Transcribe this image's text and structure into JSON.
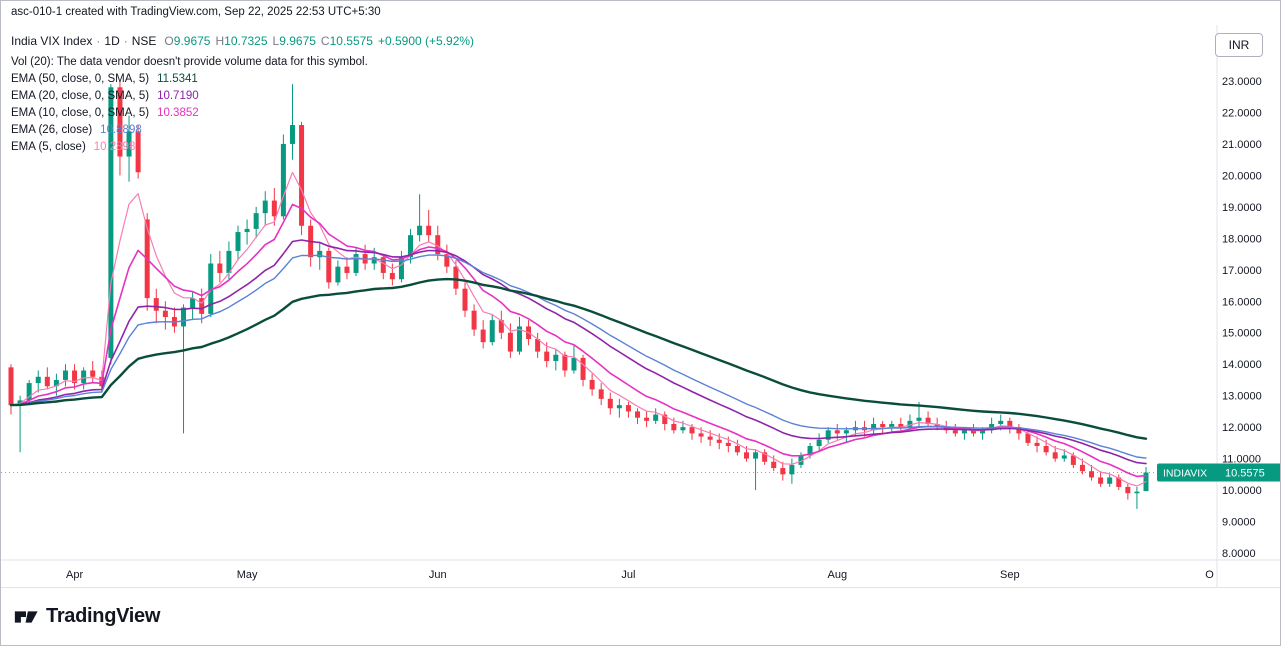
{
  "header": {
    "text": "asc-010-1 created with TradingView.com, Sep 22, 2025 22:53 UTC+5:30"
  },
  "currency_button": {
    "label": "INR"
  },
  "legend": {
    "symbol": "India VIX Index",
    "separator": "·",
    "interval": "1D",
    "exchange": "NSE",
    "ohlc_color": "#089981",
    "ohlc": {
      "o_label": "O",
      "o": "9.9675",
      "h_label": "H",
      "h": "10.7325",
      "l_label": "L",
      "l": "9.9675",
      "c_label": "C",
      "c": "10.5575"
    },
    "change": "+0.5900 (+5.92%)",
    "vol_line": "Vol (20): The data vendor doesn't provide volume data for this symbol.",
    "indicators": [
      {
        "label": "EMA (50, close, 0, SMA, 5)",
        "value": "11.5341",
        "color": "#0b4d3c"
      },
      {
        "label": "EMA (20, close, 0, SMA, 5)",
        "value": "10.7190",
        "color": "#8e24aa"
      },
      {
        "label": "EMA (10, close, 0, SMA, 5)",
        "value": "10.3852",
        "color": "#e632c1"
      },
      {
        "label": "EMA (26, close)",
        "value": "10.8898",
        "color": "#5b82d7"
      },
      {
        "label": "EMA (5, close)",
        "value": "10.2898",
        "color": "#f77db5"
      }
    ]
  },
  "price_axis": {
    "price_tag": {
      "symbol": "INDIAVIX",
      "value": "10.5575",
      "color": "#089981"
    }
  },
  "footer": {
    "brand": "TradingView"
  },
  "chart_data": {
    "type": "candlestick",
    "title": "India VIX Index · 1D · NSE",
    "ylabel": "INR",
    "ylim": [
      7.8,
      23.3
    ],
    "y_ticks": [
      8,
      9,
      10,
      11,
      12,
      13,
      14,
      15,
      16,
      17,
      18,
      19,
      20,
      21,
      22,
      23
    ],
    "y_tick_labels": [
      "8.0000",
      "9.0000",
      "10.0000",
      "11.0000",
      "12.0000",
      "13.0000",
      "14.0000",
      "15.0000",
      "16.0000",
      "17.0000",
      "18.0000",
      "19.0000",
      "20.0000",
      "21.0000",
      "22.0000",
      "23.0000"
    ],
    "current_price": 10.5575,
    "up_color": "#089981",
    "down_color": "#f23645",
    "grid": false,
    "legend_position": "top-left",
    "month_ticks": [
      {
        "label": "Apr",
        "i": 7
      },
      {
        "label": "May",
        "i": 26
      },
      {
        "label": "Jun",
        "i": 47
      },
      {
        "label": "Jul",
        "i": 68
      },
      {
        "label": "Aug",
        "i": 91
      },
      {
        "label": "Sep",
        "i": 110
      },
      {
        "label": "O",
        "i": 132
      }
    ],
    "emas": [
      {
        "period": 5,
        "color": "#f77db5",
        "width": 1.2
      },
      {
        "period": 10,
        "color": "#e632c1",
        "width": 1.6
      },
      {
        "period": 20,
        "color": "#8e24aa",
        "width": 1.6
      },
      {
        "period": 26,
        "color": "#5b82d7",
        "width": 1.4
      },
      {
        "period": 50,
        "color": "#0b4d3c",
        "width": 2.4
      }
    ],
    "candles": [
      [
        13.9,
        14.0,
        12.4,
        12.7
      ],
      [
        12.7,
        13.0,
        11.2,
        12.85
      ],
      [
        12.85,
        13.5,
        12.7,
        13.4
      ],
      [
        13.4,
        13.8,
        13.1,
        13.6
      ],
      [
        13.6,
        13.9,
        13.2,
        13.3
      ],
      [
        13.3,
        13.7,
        13.0,
        13.5
      ],
      [
        13.5,
        14.0,
        13.3,
        13.8
      ],
      [
        13.8,
        14.0,
        13.2,
        13.4
      ],
      [
        13.4,
        13.9,
        13.2,
        13.8
      ],
      [
        13.8,
        14.1,
        13.4,
        13.6
      ],
      [
        13.6,
        13.8,
        13.1,
        13.3
      ],
      [
        14.2,
        22.9,
        14.0,
        22.8
      ],
      [
        22.8,
        23.0,
        20.0,
        20.6
      ],
      [
        20.6,
        21.9,
        19.8,
        21.4
      ],
      [
        21.4,
        21.6,
        19.9,
        20.1
      ],
      [
        18.6,
        18.8,
        15.7,
        16.1
      ],
      [
        16.1,
        16.4,
        15.3,
        15.7
      ],
      [
        15.7,
        16.0,
        15.1,
        15.5
      ],
      [
        15.5,
        15.8,
        15.0,
        15.2
      ],
      [
        15.2,
        15.9,
        11.8,
        15.8
      ],
      [
        15.8,
        16.3,
        15.4,
        16.1
      ],
      [
        16.1,
        16.4,
        15.3,
        15.6
      ],
      [
        15.6,
        17.5,
        15.5,
        17.2
      ],
      [
        17.2,
        17.6,
        16.6,
        16.9
      ],
      [
        16.9,
        17.9,
        16.7,
        17.6
      ],
      [
        17.6,
        18.4,
        17.3,
        18.2
      ],
      [
        18.2,
        18.6,
        17.8,
        18.3
      ],
      [
        18.3,
        19.0,
        18.0,
        18.8
      ],
      [
        18.8,
        19.5,
        18.4,
        19.2
      ],
      [
        19.2,
        19.6,
        18.4,
        18.7
      ],
      [
        18.7,
        21.3,
        18.6,
        21.0
      ],
      [
        21.0,
        22.9,
        20.5,
        21.6
      ],
      [
        21.6,
        21.7,
        18.1,
        18.4
      ],
      [
        18.4,
        18.6,
        17.1,
        17.4
      ],
      [
        17.4,
        17.9,
        17.0,
        17.6
      ],
      [
        17.6,
        17.7,
        16.4,
        16.6
      ],
      [
        16.6,
        17.3,
        16.5,
        17.1
      ],
      [
        17.1,
        17.4,
        16.7,
        16.9
      ],
      [
        16.9,
        17.7,
        16.8,
        17.5
      ],
      [
        17.5,
        17.8,
        17.0,
        17.2
      ],
      [
        17.2,
        17.7,
        17.0,
        17.4
      ],
      [
        17.4,
        17.5,
        16.7,
        16.9
      ],
      [
        16.9,
        17.2,
        16.5,
        16.7
      ],
      [
        16.7,
        17.6,
        16.6,
        17.4
      ],
      [
        17.4,
        18.3,
        17.2,
        18.1
      ],
      [
        18.1,
        19.4,
        17.9,
        18.4
      ],
      [
        18.4,
        18.9,
        17.9,
        18.1
      ],
      [
        18.1,
        18.4,
        17.3,
        17.5
      ],
      [
        17.5,
        17.8,
        16.9,
        17.1
      ],
      [
        17.1,
        17.3,
        16.2,
        16.4
      ],
      [
        16.4,
        16.6,
        15.5,
        15.7
      ],
      [
        15.7,
        15.9,
        14.9,
        15.1
      ],
      [
        15.1,
        15.4,
        14.5,
        14.7
      ],
      [
        14.7,
        15.6,
        14.6,
        15.4
      ],
      [
        15.4,
        15.7,
        14.8,
        15.0
      ],
      [
        15.0,
        15.3,
        14.2,
        14.4
      ],
      [
        14.4,
        15.5,
        14.3,
        15.2
      ],
      [
        15.2,
        15.4,
        14.6,
        14.8
      ],
      [
        14.8,
        15.0,
        14.2,
        14.4
      ],
      [
        14.4,
        14.7,
        13.9,
        14.1
      ],
      [
        14.1,
        14.5,
        13.8,
        14.3
      ],
      [
        14.3,
        14.4,
        13.6,
        13.8
      ],
      [
        13.8,
        14.6,
        13.7,
        14.2
      ],
      [
        14.2,
        14.3,
        13.3,
        13.5
      ],
      [
        13.5,
        13.7,
        13.0,
        13.2
      ],
      [
        13.2,
        13.4,
        12.7,
        12.9
      ],
      [
        12.9,
        13.1,
        12.4,
        12.6
      ],
      [
        12.6,
        12.9,
        12.3,
        12.7
      ],
      [
        12.7,
        12.8,
        12.3,
        12.5
      ],
      [
        12.5,
        12.6,
        12.1,
        12.3
      ],
      [
        12.3,
        12.5,
        12.0,
        12.2
      ],
      [
        12.2,
        12.6,
        12.1,
        12.4
      ],
      [
        12.4,
        12.5,
        11.9,
        12.1
      ],
      [
        12.1,
        12.3,
        11.8,
        11.9
      ],
      [
        11.9,
        12.2,
        11.8,
        12.0
      ],
      [
        12.0,
        12.1,
        11.6,
        11.8
      ],
      [
        11.8,
        12.0,
        11.5,
        11.7
      ],
      [
        11.7,
        11.9,
        11.4,
        11.6
      ],
      [
        11.6,
        11.8,
        11.3,
        11.5
      ],
      [
        11.5,
        11.7,
        11.2,
        11.4
      ],
      [
        11.4,
        11.6,
        11.1,
        11.2
      ],
      [
        11.2,
        11.4,
        10.9,
        11.0
      ],
      [
        11.0,
        11.3,
        10.0,
        11.2
      ],
      [
        11.2,
        11.3,
        10.8,
        10.9
      ],
      [
        10.9,
        11.1,
        10.6,
        10.7
      ],
      [
        10.7,
        10.9,
        10.3,
        10.5
      ],
      [
        10.5,
        11.0,
        10.2,
        10.8
      ],
      [
        10.8,
        11.2,
        10.7,
        11.1
      ],
      [
        11.1,
        11.5,
        11.0,
        11.4
      ],
      [
        11.4,
        11.8,
        11.2,
        11.6
      ],
      [
        11.6,
        12.0,
        11.5,
        11.9
      ],
      [
        11.9,
        12.1,
        11.6,
        11.8
      ],
      [
        11.8,
        12.0,
        11.5,
        11.9
      ],
      [
        11.9,
        12.2,
        11.7,
        12.0
      ],
      [
        12.0,
        12.2,
        11.7,
        11.9
      ],
      [
        11.9,
        12.3,
        11.8,
        12.1
      ],
      [
        12.1,
        12.2,
        11.8,
        12.0
      ],
      [
        12.0,
        12.2,
        11.8,
        12.1
      ],
      [
        12.1,
        12.3,
        11.9,
        12.0
      ],
      [
        12.0,
        12.4,
        11.9,
        12.2
      ],
      [
        12.2,
        12.8,
        12.0,
        12.3
      ],
      [
        12.3,
        12.5,
        12.0,
        12.1
      ],
      [
        12.1,
        12.3,
        11.9,
        12.0
      ],
      [
        12.0,
        12.2,
        11.8,
        11.9
      ],
      [
        11.9,
        12.1,
        11.7,
        11.8
      ],
      [
        11.8,
        12.0,
        11.6,
        11.9
      ],
      [
        11.9,
        12.1,
        11.7,
        11.8
      ],
      [
        11.8,
        12.0,
        11.6,
        11.9
      ],
      [
        11.9,
        12.3,
        11.8,
        12.1
      ],
      [
        12.1,
        12.4,
        11.9,
        12.2
      ],
      [
        12.2,
        12.3,
        11.8,
        12.0
      ],
      [
        12.0,
        12.1,
        11.6,
        11.8
      ],
      [
        11.8,
        11.9,
        11.4,
        11.5
      ],
      [
        11.5,
        11.7,
        11.2,
        11.4
      ],
      [
        11.4,
        11.6,
        11.1,
        11.2
      ],
      [
        11.2,
        11.4,
        10.9,
        11.0
      ],
      [
        11.0,
        11.3,
        10.9,
        11.1
      ],
      [
        11.1,
        11.2,
        10.7,
        10.8
      ],
      [
        10.8,
        11.0,
        10.5,
        10.6
      ],
      [
        10.6,
        10.8,
        10.3,
        10.4
      ],
      [
        10.4,
        10.6,
        10.1,
        10.2
      ],
      [
        10.2,
        10.5,
        10.1,
        10.4
      ],
      [
        10.4,
        10.5,
        10.0,
        10.1
      ],
      [
        10.1,
        10.2,
        9.7,
        9.9
      ],
      [
        9.9,
        10.1,
        9.4,
        9.95
      ],
      [
        9.9675,
        10.7325,
        9.9675,
        10.5575
      ]
    ]
  }
}
